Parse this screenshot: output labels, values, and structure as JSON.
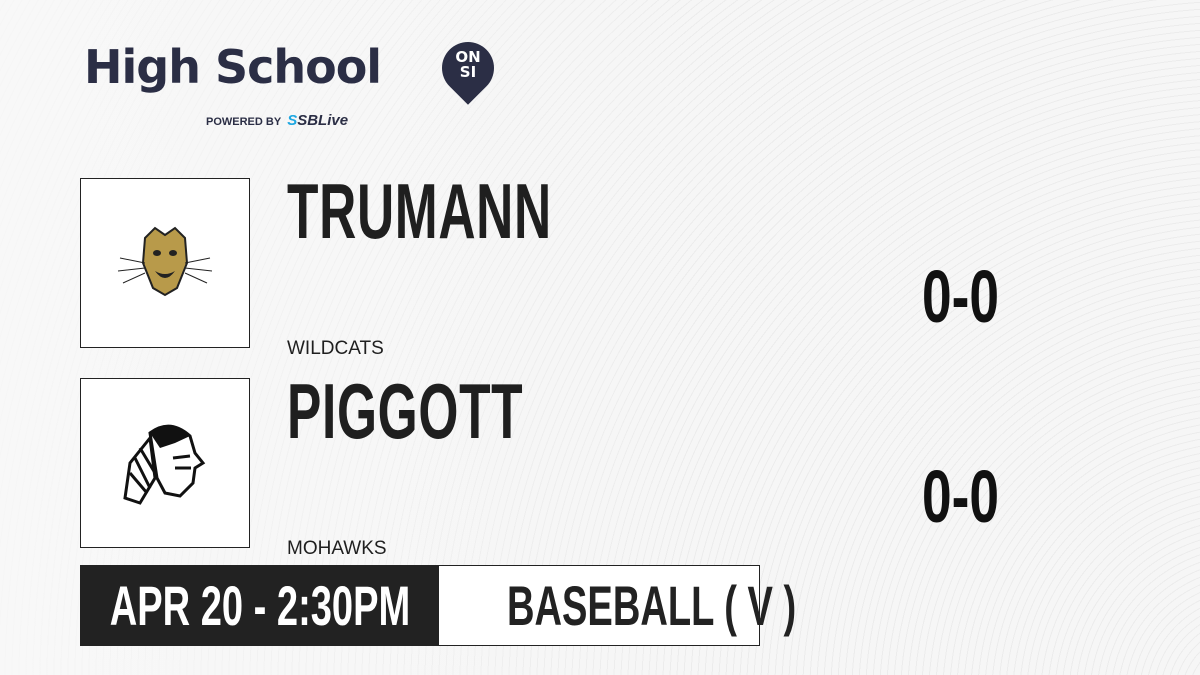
{
  "brand": {
    "title": "High School",
    "badge_top": "ON",
    "badge_bottom": "SI",
    "powered_by": "POWERED BY",
    "partner": "SBLive",
    "accent": "#2b2e45",
    "partner_color": "#1ea7e1"
  },
  "teams": [
    {
      "name": "TRUMANN",
      "mascot": "WILDCATS",
      "score": "0-0",
      "logo_icon": "wildcat-head-icon"
    },
    {
      "name": "PIGGOTT",
      "mascot": "MOHAWKS",
      "score": "0-0",
      "logo_icon": "mohawk-head-icon"
    }
  ],
  "game": {
    "datetime": "APR 20 - 2:30PM",
    "sport": "BASEBALL ( V )"
  }
}
